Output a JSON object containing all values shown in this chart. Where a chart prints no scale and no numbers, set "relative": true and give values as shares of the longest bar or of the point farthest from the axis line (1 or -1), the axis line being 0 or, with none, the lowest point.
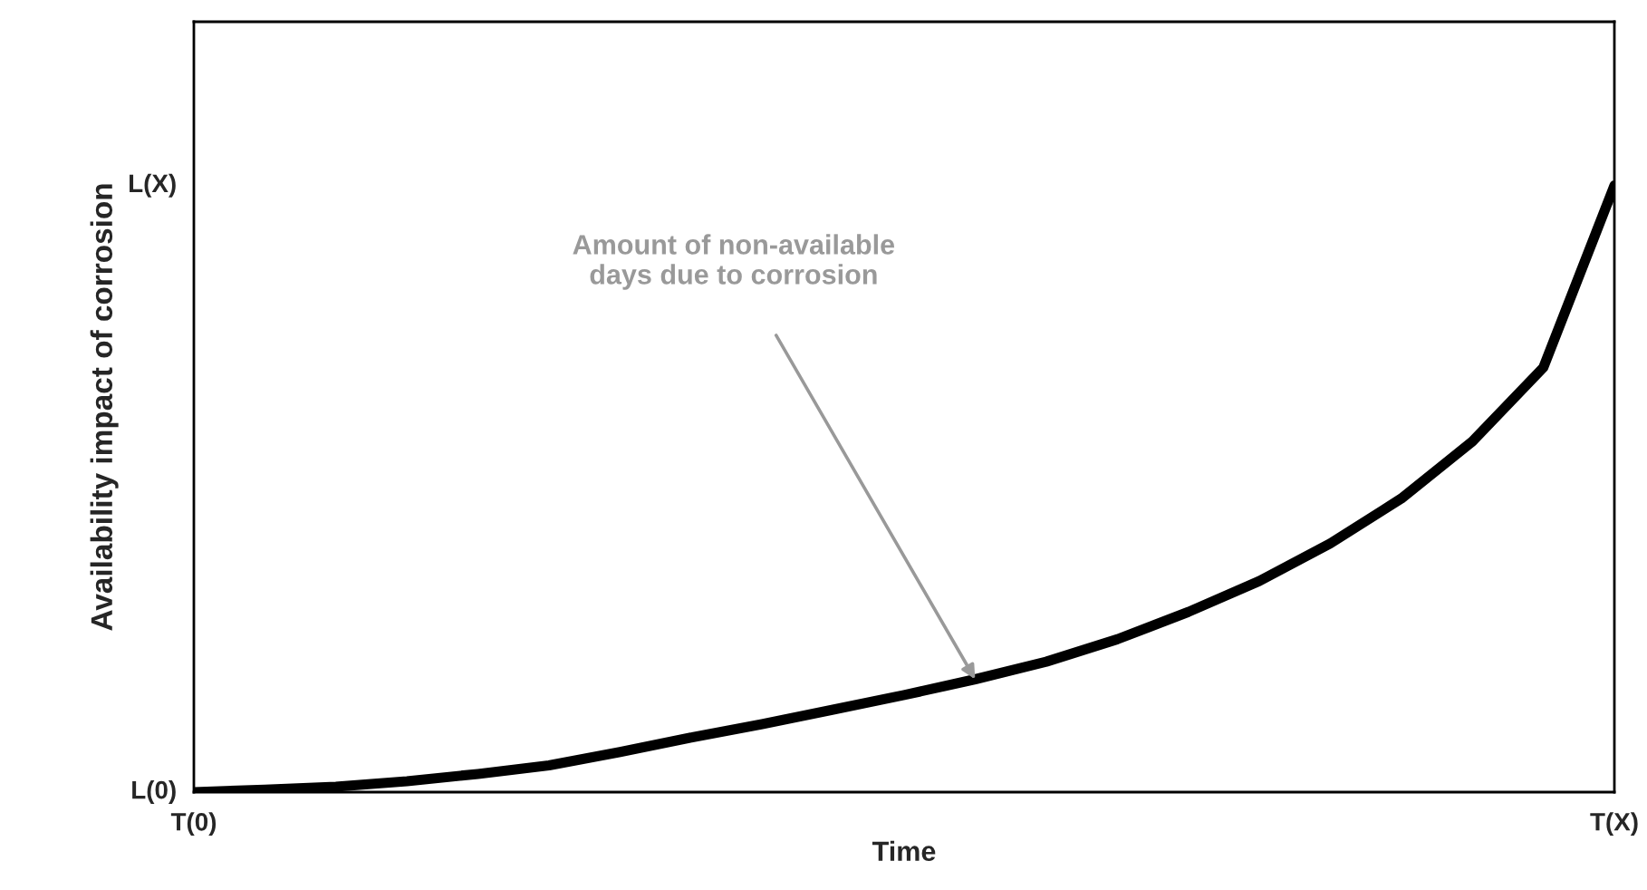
{
  "chart_data": {
    "type": "line",
    "relative": true,
    "xlabel": "Time",
    "ylabel": "Availability impact of corrosion",
    "categories": [
      "T(0)",
      null,
      null,
      null,
      null,
      null,
      null,
      null,
      null,
      null,
      null,
      null,
      null,
      null,
      null,
      null,
      null,
      null,
      null,
      null,
      "T(X)"
    ],
    "series": [
      {
        "color": "#000000",
        "values": [
          0,
          0.004,
          0.009,
          0.018,
          0.03,
          0.044,
          0.066,
          0.09,
          0.112,
          0.136,
          0.16,
          0.186,
          0.215,
          0.252,
          0.297,
          0.348,
          0.41,
          0.484,
          0.578,
          0.7,
          1
        ]
      }
    ],
    "annotations": [
      "L(0)",
      "L(X)",
      "Amount of non-available\ndays due to corrosion"
    ],
    "marker": "none",
    "line_style": "solid"
  }
}
